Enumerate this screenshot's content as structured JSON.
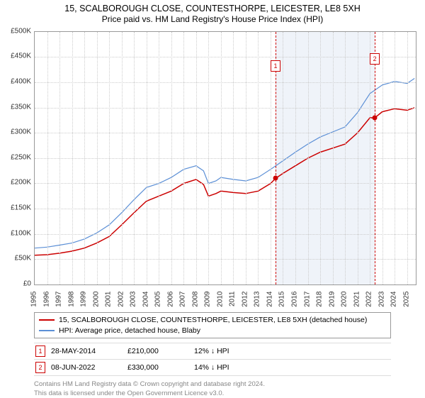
{
  "title": "15, SCALBOROUGH CLOSE, COUNTESTHORPE, LEICESTER, LE8 5XH",
  "subtitle": "Price paid vs. HM Land Registry's House Price Index (HPI)",
  "chart": {
    "type": "line",
    "x_years": [
      1995,
      1996,
      1997,
      1998,
      1999,
      2000,
      2001,
      2002,
      2003,
      2004,
      2005,
      2006,
      2007,
      2008,
      2009,
      2010,
      2011,
      2012,
      2013,
      2014,
      2015,
      2016,
      2017,
      2018,
      2019,
      2020,
      2021,
      2022,
      2023,
      2024,
      2025
    ],
    "xlim": [
      1995,
      2025.7
    ],
    "ylim": [
      0,
      500000
    ],
    "ytick_step": 50000,
    "y_prefix": "£",
    "y_suffix": "K",
    "grid_color": "#cccccc",
    "border_color": "#999999",
    "background_color": "#ffffff",
    "shaded_region": {
      "from": 2014.4,
      "to": 2022.4,
      "color": "#e8eef7"
    },
    "series": [
      {
        "name": "15, SCALBOROUGH CLOSE, COUNTESTHORPE, LEICESTER, LE8 5XH (detached house)",
        "color": "#cc0000",
        "width": 1.5,
        "points": [
          [
            1995,
            58000
          ],
          [
            1996,
            59000
          ],
          [
            1997,
            62000
          ],
          [
            1998,
            66000
          ],
          [
            1999,
            72000
          ],
          [
            2000,
            82000
          ],
          [
            2001,
            95000
          ],
          [
            2002,
            118000
          ],
          [
            2003,
            142000
          ],
          [
            2004,
            165000
          ],
          [
            2005,
            175000
          ],
          [
            2006,
            185000
          ],
          [
            2007,
            200000
          ],
          [
            2008,
            208000
          ],
          [
            2008.6,
            198000
          ],
          [
            2009,
            175000
          ],
          [
            2009.6,
            180000
          ],
          [
            2010,
            185000
          ],
          [
            2011,
            182000
          ],
          [
            2012,
            180000
          ],
          [
            2013,
            185000
          ],
          [
            2014,
            200000
          ],
          [
            2014.4,
            210000
          ],
          [
            2015,
            220000
          ],
          [
            2016,
            235000
          ],
          [
            2017,
            250000
          ],
          [
            2018,
            262000
          ],
          [
            2019,
            270000
          ],
          [
            2020,
            278000
          ],
          [
            2021,
            300000
          ],
          [
            2022,
            330000
          ],
          [
            2022.4,
            330000
          ],
          [
            2023,
            342000
          ],
          [
            2024,
            348000
          ],
          [
            2025,
            345000
          ],
          [
            2025.6,
            350000
          ]
        ]
      },
      {
        "name": "HPI: Average price, detached house, Blaby",
        "color": "#5b8fd6",
        "width": 1.2,
        "points": [
          [
            1995,
            72000
          ],
          [
            1996,
            74000
          ],
          [
            1997,
            78000
          ],
          [
            1998,
            82000
          ],
          [
            1999,
            90000
          ],
          [
            2000,
            102000
          ],
          [
            2001,
            118000
          ],
          [
            2002,
            142000
          ],
          [
            2003,
            168000
          ],
          [
            2004,
            192000
          ],
          [
            2005,
            200000
          ],
          [
            2006,
            212000
          ],
          [
            2007,
            228000
          ],
          [
            2008,
            235000
          ],
          [
            2008.6,
            225000
          ],
          [
            2009,
            200000
          ],
          [
            2009.6,
            205000
          ],
          [
            2010,
            212000
          ],
          [
            2011,
            208000
          ],
          [
            2012,
            205000
          ],
          [
            2013,
            212000
          ],
          [
            2014,
            228000
          ],
          [
            2015,
            245000
          ],
          [
            2016,
            262000
          ],
          [
            2017,
            278000
          ],
          [
            2018,
            292000
          ],
          [
            2019,
            302000
          ],
          [
            2020,
            312000
          ],
          [
            2021,
            340000
          ],
          [
            2022,
            378000
          ],
          [
            2023,
            395000
          ],
          [
            2024,
            402000
          ],
          [
            2025,
            398000
          ],
          [
            2025.6,
            408000
          ]
        ]
      }
    ],
    "markers": [
      {
        "id": "1",
        "x": 2014.4,
        "y": 210000,
        "line_color": "#cc0000",
        "dot_color": "#cc0000"
      },
      {
        "id": "2",
        "x": 2022.4,
        "y": 330000,
        "line_color": "#cc0000",
        "dot_color": "#cc0000"
      }
    ],
    "label_fontsize": 10
  },
  "transactions": [
    {
      "id": "1",
      "date": "28-MAY-2014",
      "price": "£210,000",
      "diff": "12% ↓ HPI",
      "color": "#cc0000"
    },
    {
      "id": "2",
      "date": "08-JUN-2022",
      "price": "£330,000",
      "diff": "14% ↓ HPI",
      "color": "#cc0000"
    }
  ],
  "footnote": {
    "line1": "Contains HM Land Registry data © Crown copyright and database right 2024.",
    "line2": "This data is licensed under the Open Government Licence v3.0."
  }
}
